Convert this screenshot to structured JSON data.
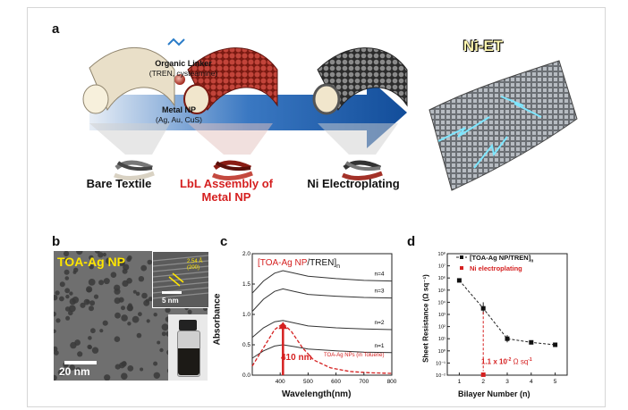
{
  "panel_a": {
    "label": "a",
    "stages": [
      "Bare Textile",
      "LbL Assembly of\nMetal NP",
      "Ni Electroplating"
    ],
    "linker_title": "Organic Linker",
    "linker_sub": "(TREN, cysteamine)",
    "np_title": "Metal NP",
    "np_sub": "(Ag, Au, CuS)",
    "product": "Ni-ET"
  },
  "panel_b": {
    "label": "b",
    "title": "TOA-Ag NP",
    "scalebar_main": "20 nm",
    "scalebar_inset": "5 nm",
    "lattice_1": "2.54 Å",
    "lattice_2": "(200)"
  },
  "panel_c": {
    "label": "c",
    "annotation": "410 nm",
    "dashed_label": "TOA-Ag NPs (in Toluene)",
    "chart_data": {
      "type": "line",
      "title_part1": "[TOA-Ag NP",
      "title_part2": "/TREN]",
      "title_sub": "n",
      "xlabel": "Wavelength(nm)",
      "ylabel": "Absorbance",
      "xlim": [
        300,
        800
      ],
      "ylim": [
        0.0,
        2.0
      ],
      "xticks": [
        "400",
        "500",
        "600",
        "700",
        "800"
      ],
      "yticks": [
        "0.0",
        "0.5",
        "1.0",
        "1.5",
        "2.0"
      ],
      "series": [
        {
          "name": "n=4",
          "x": [
            300,
            340,
            380,
            410,
            450,
            500,
            600,
            700,
            800
          ],
          "y": [
            1.35,
            1.55,
            1.68,
            1.72,
            1.68,
            1.63,
            1.59,
            1.56,
            1.55
          ]
        },
        {
          "name": "n=3",
          "x": [
            300,
            340,
            380,
            410,
            450,
            500,
            600,
            700,
            800
          ],
          "y": [
            1.05,
            1.25,
            1.38,
            1.42,
            1.38,
            1.33,
            1.3,
            1.28,
            1.27
          ]
        },
        {
          "name": "n=2",
          "x": [
            300,
            340,
            380,
            410,
            450,
            500,
            600,
            700,
            800
          ],
          "y": [
            0.62,
            0.78,
            0.88,
            0.9,
            0.86,
            0.81,
            0.78,
            0.76,
            0.75
          ]
        },
        {
          "name": "n=1",
          "x": [
            300,
            340,
            380,
            410,
            450,
            500,
            600,
            700,
            800
          ],
          "y": [
            0.28,
            0.4,
            0.48,
            0.5,
            0.47,
            0.43,
            0.4,
            0.38,
            0.37
          ]
        }
      ],
      "dashed_series": {
        "x": [
          300,
          340,
          380,
          410,
          440,
          480,
          520,
          580,
          650,
          720,
          800
        ],
        "y": [
          0.15,
          0.45,
          0.75,
          0.85,
          0.72,
          0.45,
          0.25,
          0.12,
          0.06,
          0.04,
          0.03
        ]
      },
      "peak_x": 410
    }
  },
  "panel_d": {
    "label": "d",
    "annotation_main": "1.1 x 10",
    "annotation_exp": "-2",
    "annotation_unit": "Ω sq",
    "annotation_unit_exp": "-1",
    "chart_data": {
      "type": "line",
      "xlabel": "Bilayer Number (n)",
      "ylabel": "Sheet Resistance (Ω sq⁻¹)",
      "xlim": [
        0.5,
        5.5
      ],
      "ylog": true,
      "ylim_exp": [
        -2,
        8
      ],
      "xticks": [
        "1",
        "2",
        "3",
        "4",
        "5"
      ],
      "yticks": [
        "10⁻²",
        "10⁻¹",
        "10⁰",
        "10¹",
        "10²",
        "10³",
        "10⁴",
        "10⁵",
        "10⁶",
        "10⁷",
        "10⁸"
      ],
      "legend": [
        "[TOA-Ag NP/TREN]",
        "Ni electroplating"
      ],
      "legend_sub": "n",
      "series": [
        {
          "name": "[TOA-Ag NP/TREN]n",
          "x": [
            1,
            2,
            3,
            4,
            5
          ],
          "y_exp": [
            5.8,
            3.5,
            1.0,
            0.7,
            0.5
          ],
          "err_exp": [
            0.15,
            0.5,
            0.3,
            0.1,
            0.1
          ]
        },
        {
          "name": "Ni electroplating",
          "x": [
            2
          ],
          "y_exp": [
            -1.96
          ]
        }
      ]
    }
  }
}
